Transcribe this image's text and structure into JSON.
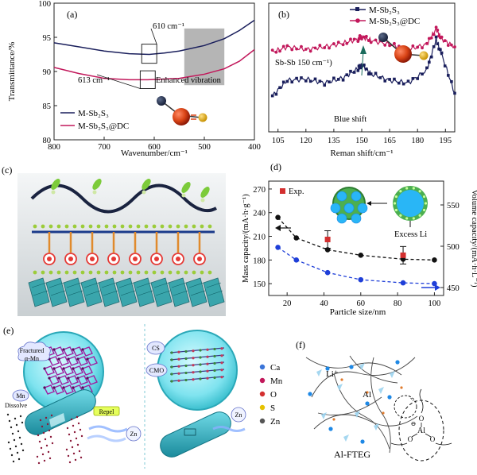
{
  "panels": {
    "a": {
      "letter": "(a)",
      "ylabel": "Transmittance/%",
      "xlabel": "Wavenumber/cm⁻¹",
      "xticks": [
        "800",
        "700",
        "600",
        "500",
        "400"
      ],
      "yticks": [
        "100",
        "95",
        "90",
        "85",
        "80"
      ],
      "annot_610": "610 cm⁻¹",
      "annot_613": "613 cm⁻¹",
      "annot_enh": "Enhanced vibration",
      "legend": [
        "M-Sb₂S₃",
        "M-Sb₂S₃@DC"
      ],
      "colors": {
        "navy": "#1a1f5c",
        "magenta": "#c2185b",
        "gray": "#9e9e9e"
      }
    },
    "b": {
      "letter": "(b)",
      "xlabel": "Reman shift/cm⁻¹",
      "xticks": [
        "105",
        "120",
        "135",
        "150",
        "165",
        "180",
        "195"
      ],
      "legend": [
        "M-Sb₂S₃",
        "M-Sb₂S₃@DC"
      ],
      "annot_sbsb": "Sb-Sb 150 cm⁻¹)",
      "annot_blue": "Blue shift"
    },
    "c": {
      "letter": "(c)"
    },
    "d": {
      "letter": "(d)",
      "ylabel_left": "Mass capacity/(mA·h·g⁻¹)",
      "ylabel_right": "Volume capacity/(mA·h·L⁻¹)",
      "xlabel": "Particle size/nm",
      "xticks": [
        "20",
        "40",
        "60",
        "80",
        "100"
      ],
      "yticks_left": [
        "270",
        "240",
        "210",
        "180",
        "150"
      ],
      "yticks_right": [
        "550",
        "500",
        "450"
      ],
      "legend_exp": "Exp.",
      "annot_excess": "Excess Li"
    },
    "e": {
      "letter": "(e)",
      "label_fractured": "Fractured",
      "label_alpha": "α-Mn",
      "label_repel": "Repel",
      "label_mn": "Mn",
      "label_dissolve": "Dissolve",
      "label_zn": "Zn",
      "label_zn2": "Zn",
      "label_cs": "CS",
      "label_cmo": "CMO",
      "legend": [
        "Ca",
        "Mn",
        "O",
        "S",
        "Zn"
      ]
    },
    "f": {
      "letter": "(f)",
      "label_li": "Li⁺",
      "label_al": "Al",
      "label_fteg": "Al-FTEG",
      "label_al2": "Al",
      "label_o": "O",
      "label_minus": "⊖"
    }
  },
  "chart_data": [
    {
      "type": "line",
      "title": "",
      "xlabel": "Wavenumber/cm⁻¹",
      "ylabel": "Transmittance/%",
      "xlim": [
        800,
        400
      ],
      "ylim": [
        80,
        100
      ],
      "series": [
        {
          "name": "M-Sb₂S₃",
          "x": [
            800,
            750,
            700,
            650,
            610,
            580,
            550,
            500,
            460,
            430,
            400
          ],
          "values": [
            94.2,
            93.6,
            93.0,
            92.6,
            92.5,
            92.7,
            93.0,
            93.8,
            94.8,
            96.0,
            97.5
          ]
        },
        {
          "name": "M-Sb₂S₃@DC",
          "x": [
            800,
            750,
            700,
            650,
            613,
            580,
            550,
            500,
            460,
            430,
            400
          ],
          "values": [
            90.6,
            89.7,
            89.0,
            88.8,
            88.8,
            88.9,
            89.0,
            89.6,
            90.4,
            91.5,
            93.2
          ]
        }
      ]
    },
    {
      "type": "line",
      "title": "",
      "xlabel": "Reman shift/cm⁻¹",
      "ylabel": "",
      "xlim": [
        100,
        200
      ],
      "series": [
        {
          "name": "M-Sb₂S₃",
          "x": [
            102,
            110,
            120,
            130,
            140,
            148,
            150,
            155,
            165,
            175,
            185,
            190,
            193,
            200
          ],
          "values": [
            0.28,
            0.4,
            0.41,
            0.38,
            0.42,
            0.49,
            0.52,
            0.45,
            0.4,
            0.38,
            0.48,
            0.72,
            0.6,
            0.3
          ]
        },
        {
          "name": "M-Sb₂S₃@DC",
          "x": [
            102,
            110,
            120,
            130,
            140,
            148,
            150,
            155,
            165,
            175,
            185,
            190,
            193,
            200
          ],
          "values": [
            0.62,
            0.66,
            0.64,
            0.66,
            0.69,
            0.72,
            0.74,
            0.71,
            0.68,
            0.64,
            0.68,
            0.8,
            0.72,
            0.66
          ]
        }
      ]
    },
    {
      "type": "scatter",
      "title": "",
      "xlabel": "Particle size/nm",
      "ylabel": "Mass capacity/(mA·h·g⁻¹)",
      "xlim": [
        10,
        105
      ],
      "ylim": [
        135,
        280
      ],
      "series": [
        {
          "name": "black",
          "x": [
            15,
            25,
            42,
            60,
            83,
            100
          ],
          "values": [
            234,
            208,
            193,
            186,
            181,
            180
          ]
        },
        {
          "name": "blue",
          "x": [
            15,
            25,
            42,
            60,
            83,
            100
          ],
          "values": [
            196,
            180,
            164,
            155,
            151,
            150
          ]
        },
        {
          "name": "Exp.",
          "x": [
            42,
            83
          ],
          "values": [
            206,
            186
          ]
        }
      ]
    }
  ]
}
